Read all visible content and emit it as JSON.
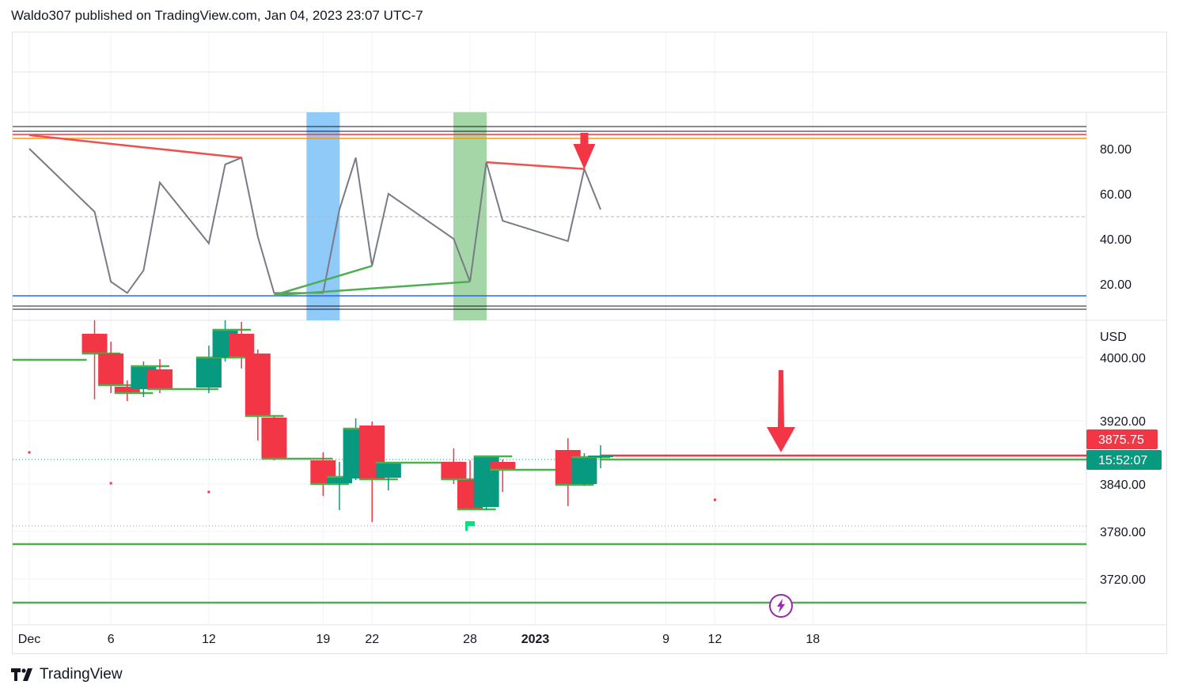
{
  "header": {
    "title": "Waldo307 published on TradingView.com, Jan 04, 2023 23:07 UTC-7"
  },
  "footer": {
    "brand": "TradingView"
  },
  "price_axis": {
    "currency": "USD",
    "last_price": "3875.75",
    "countdown": "15:52:07"
  },
  "colors": {
    "up": "#089981",
    "down": "#f23645",
    "oscillator": "#787b86",
    "support": "#4caf50",
    "resistance": "#f0504d",
    "band_blue": "#90caf9",
    "band_green": "#a5d6a7"
  },
  "icons": {
    "lightning": "lightning-icon",
    "flag": "flag-icon",
    "arrow_down": "arrow-down-icon"
  },
  "chart_data": [
    {
      "type": "line",
      "panel": "oscillator",
      "y_ticks": [
        "80.00",
        "60.00",
        "40.00",
        "20.00"
      ],
      "ylim": [
        10,
        90
      ],
      "levels": [
        92,
        90,
        88,
        86,
        50,
        16,
        10,
        9
      ],
      "x": [
        "Dec 1",
        "Dec 2",
        "Dec 5",
        "Dec 6",
        "Dec 7",
        "Dec 8",
        "Dec 9",
        "Dec 12",
        "Dec 13",
        "Dec 14",
        "Dec 15",
        "Dec 16",
        "Dec 19",
        "Dec 20",
        "Dec 21",
        "Dec 22",
        "Dec 23",
        "Dec 27",
        "Dec 28",
        "Dec 29",
        "Dec 30",
        "Jan 3",
        "Jan 4",
        "Jan 5"
      ],
      "values": [
        80,
        73,
        52,
        21,
        16,
        26,
        65,
        38,
        73,
        76,
        41,
        16,
        16,
        53,
        76,
        28,
        60,
        40,
        21,
        74,
        48,
        39,
        71,
        53
      ],
      "divergence_lines": [
        {
          "color": "resistance",
          "from": [
            "Dec 1",
            86
          ],
          "to": [
            "Dec 14",
            76
          ]
        },
        {
          "color": "support",
          "from": [
            "Dec 16",
            15
          ],
          "to": [
            "Dec 22",
            28
          ]
        },
        {
          "color": "support",
          "from": [
            "Dec 16",
            15
          ],
          "to": [
            "Dec 28",
            21
          ]
        },
        {
          "color": "resistance",
          "from": [
            "Dec 29",
            74
          ],
          "to": [
            "Jan 4",
            71
          ]
        }
      ],
      "bands": [
        {
          "at": "Dec 19",
          "color": "band_blue"
        },
        {
          "at": "Dec 28",
          "color": "band_green"
        }
      ]
    },
    {
      "type": "candlestick",
      "panel": "price",
      "y_ticks": [
        "4000.00",
        "3920.00",
        "3840.00",
        "3780.00",
        "3720.00"
      ],
      "ylim": [
        3690,
        4065
      ],
      "x_ticks": [
        "Dec",
        "6",
        "12",
        "19",
        "22",
        "28",
        "2023",
        "9",
        "12",
        "18"
      ],
      "x": [
        "Dec 5",
        "Dec 6",
        "Dec 7",
        "Dec 8",
        "Dec 9",
        "Dec 12",
        "Dec 13",
        "Dec 14",
        "Dec 15",
        "Dec 16",
        "Dec 19",
        "Dec 20",
        "Dec 21",
        "Dec 22",
        "Dec 23",
        "Dec 27",
        "Dec 28",
        "Dec 29",
        "Dec 30",
        "Jan 3",
        "Jan 4",
        "Jan 5"
      ],
      "ohlc": [
        [
          4030,
          4065,
          3947,
          4005
        ],
        [
          4005,
          4020,
          3955,
          3965
        ],
        [
          3963,
          3971,
          3945,
          3955
        ],
        [
          3960,
          3995,
          3950,
          3989
        ],
        [
          3985,
          3998,
          3955,
          3960
        ],
        [
          3962,
          4015,
          3955,
          4000
        ],
        [
          4000,
          4050,
          3995,
          4035
        ],
        [
          4030,
          4045,
          3986,
          4000
        ],
        [
          4005,
          4010,
          3895,
          3926
        ],
        [
          3924,
          3925,
          3870,
          3872
        ],
        [
          3870,
          3880,
          3825,
          3840
        ],
        [
          3841,
          3868,
          3807,
          3849
        ],
        [
          3847,
          3923,
          3845,
          3910
        ],
        [
          3914,
          3919,
          3792,
          3846
        ],
        [
          3848,
          3868,
          3832,
          3867
        ],
        [
          3868,
          3885,
          3840,
          3846
        ],
        [
          3845,
          3870,
          3807,
          3808
        ],
        [
          3811,
          3875,
          3807,
          3875
        ],
        [
          3868,
          3871,
          3830,
          3858
        ],
        [
          3883,
          3898,
          3812,
          3839
        ],
        [
          3840,
          3879,
          3838,
          3874
        ],
        [
          3874,
          3889,
          3860,
          3876
        ]
      ],
      "support_levels": [
        4000,
        3763,
        3690
      ],
      "resistance_level": 3875.75
    }
  ]
}
